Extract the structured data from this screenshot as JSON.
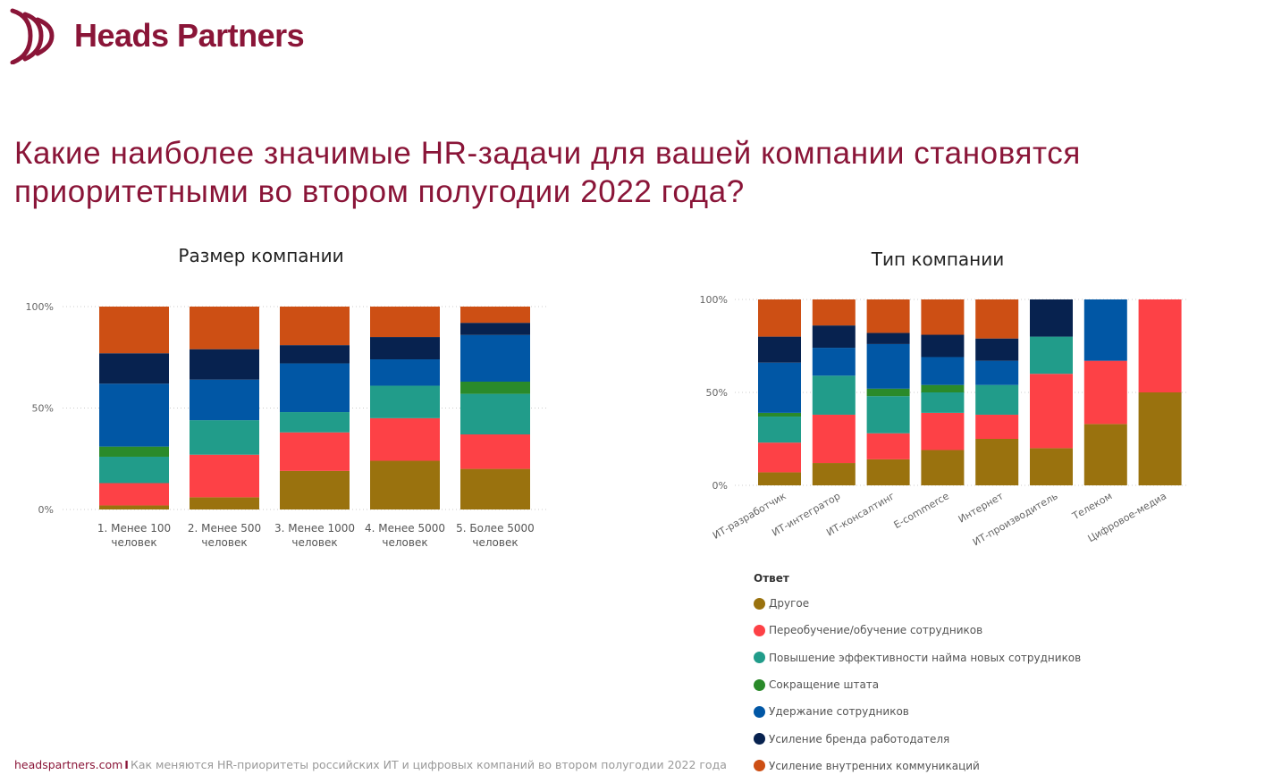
{
  "brand": {
    "name": "Heads Partners",
    "color": "#8a1538",
    "logo_icon": "triple-chevron-logo-icon"
  },
  "title": "Какие наиболее значимые HR-задачи для вашей компании становятся приоритетными во втором полугодии 2022 года?",
  "colors": {
    "Другое": "#9a720e",
    "Переобучение/обучение сотрудников": "#fd4146",
    "Повышение эффективности найма новых сотрудников": "#219c8a",
    "Сокращение штата": "#2a8a2a",
    "Удержание сотрудников": "#0157a5",
    "Усиление бренда работодателя": "#07224f",
    "Усиление внутренних коммуникаций": "#cd4f14"
  },
  "legend": {
    "title": "Ответ",
    "items": [
      "Другое",
      "Переобучение/обучение сотрудников",
      "Повышение эффективности найма новых сотрудников",
      "Сокращение штата",
      "Удержание сотрудников",
      "Усиление бренда работодателя",
      "Усиление внутренних коммуникаций"
    ]
  },
  "chart_data": [
    {
      "type": "bar",
      "stacked": "100%",
      "title": "Размер компании",
      "y_ticks": [
        "0%",
        "50%",
        "100%"
      ],
      "ylim": [
        0,
        100
      ],
      "grid": "horizontal dotted",
      "categories": [
        "1. Менее 100 человек",
        "2. Менее 500 человек",
        "3. Менее 1000 человек",
        "4. Менее 5000 человек",
        "5. Более 5000 человек"
      ],
      "series": [
        {
          "name": "Другое",
          "values": [
            2,
            6,
            19,
            24,
            20
          ]
        },
        {
          "name": "Переобучение/обучение сотрудников",
          "values": [
            11,
            21,
            19,
            21,
            17
          ]
        },
        {
          "name": "Повышение эффективности найма новых сотрудников",
          "values": [
            13,
            17,
            10,
            16,
            20
          ]
        },
        {
          "name": "Сокращение штата",
          "values": [
            5,
            0,
            0,
            0,
            6
          ]
        },
        {
          "name": "Удержание сотрудников",
          "values": [
            31,
            20,
            24,
            13,
            23
          ]
        },
        {
          "name": "Усиление бренда работодателя",
          "values": [
            15,
            15,
            9,
            11,
            6
          ]
        },
        {
          "name": "Усиление внутренних коммуникаций",
          "values": [
            23,
            21,
            19,
            15,
            8
          ]
        }
      ]
    },
    {
      "type": "bar",
      "stacked": "100%",
      "title": "Тип компании",
      "y_ticks": [
        "0%",
        "50%",
        "100%"
      ],
      "ylim": [
        0,
        100
      ],
      "grid": "horizontal dotted",
      "categories": [
        "ИТ-разработчик",
        "ИТ-интегратор",
        "ИТ-консалтинг",
        "E-commerce",
        "Интернет",
        "ИТ-производитель",
        "Телеком",
        "Цифровое-медиа"
      ],
      "series": [
        {
          "name": "Другое",
          "values": [
            7,
            12,
            14,
            19,
            25,
            20,
            33,
            50
          ]
        },
        {
          "name": "Переобучение/обучение сотрудников",
          "values": [
            16,
            26,
            14,
            20,
            13,
            40,
            34,
            50
          ]
        },
        {
          "name": "Повышение эффективности найма новых сотрудников",
          "values": [
            14,
            21,
            20,
            11,
            16,
            20,
            0,
            0
          ]
        },
        {
          "name": "Сокращение штата",
          "values": [
            2,
            0,
            4,
            4,
            0,
            0,
            0,
            0
          ]
        },
        {
          "name": "Удержание сотрудников",
          "values": [
            27,
            15,
            24,
            15,
            13,
            0,
            33,
            0
          ]
        },
        {
          "name": "Усиление бренда работодателя",
          "values": [
            14,
            12,
            6,
            12,
            12,
            20,
            0,
            0
          ]
        },
        {
          "name": "Усиление внутренних коммуникаций",
          "values": [
            20,
            14,
            18,
            19,
            21,
            0,
            0,
            0
          ]
        }
      ]
    }
  ],
  "footer": {
    "site": "headspartners.com",
    "separator": "I",
    "text": "Как меняются HR-приоритеты российских ИТ и цифровых компаний во втором полугодии 2022 года"
  }
}
